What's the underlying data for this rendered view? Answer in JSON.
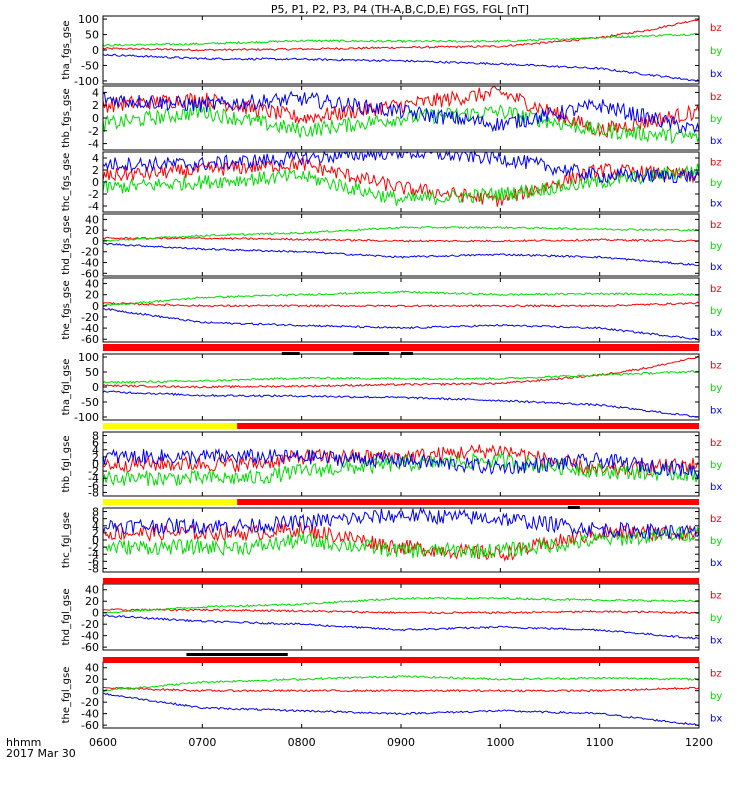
{
  "title": "P5, P1, P2, P3, P4 (TH-A,B,C,D,E) FGS, FGL [nT]",
  "footer": {
    "label_time": "hhmm",
    "label_date": "2017 Mar 30"
  },
  "colors": {
    "bx": "#0000ff",
    "by": "#00dd00",
    "bz": "#ff0000",
    "flag_red": "#ff0000",
    "flag_yellow": "#ffff00",
    "flag_black": "#000000"
  },
  "components": [
    "bz",
    "by",
    "bx"
  ],
  "chart_data": {
    "type": "line",
    "title": "P5, P1, P2, P3, P4 (TH-A,B,C,D,E) FGS, FGL [nT]",
    "x_axis": {
      "label": "hhmm",
      "start": "0600",
      "end": "1200",
      "ticks": [
        "0600",
        "0700",
        "0800",
        "0900",
        "1000",
        "1100",
        "1200"
      ],
      "date": "2017 Mar 30"
    },
    "panels": [
      {
        "ylabel": "tha_fgs_gse",
        "ylim": [
          -110,
          110
        ],
        "yticks": [
          -100,
          -50,
          0,
          50,
          100
        ],
        "series": [
          {
            "name": "bz",
            "x": [
              600,
              700,
              800,
              900,
              1000,
              1030,
              1100,
              1130,
              1200
            ],
            "y": [
              5,
              0,
              3,
              8,
              12,
              25,
              40,
              65,
              100
            ]
          },
          {
            "name": "by",
            "x": [
              600,
              700,
              800,
              900,
              1000,
              1100,
              1200
            ],
            "y": [
              15,
              20,
              30,
              28,
              28,
              40,
              52
            ]
          },
          {
            "name": "bx",
            "x": [
              600,
              700,
              800,
              900,
              1000,
              1100,
              1200
            ],
            "y": [
              -15,
              -28,
              -30,
              -35,
              -45,
              -60,
              -100
            ]
          }
        ]
      },
      {
        "ylabel": "thb_fgs_gse",
        "ylim": [
          -5,
          5
        ],
        "yticks": [
          -4,
          -2,
          0,
          2,
          4
        ],
        "series": [
          {
            "name": "bz",
            "x": [
              600,
              700,
              800,
              900,
              1000,
              1100,
              1200
            ],
            "y": [
              2,
              3,
              0,
              2,
              4,
              -2,
              1
            ]
          },
          {
            "name": "by",
            "x": [
              600,
              700,
              800,
              900,
              1000,
              1100,
              1200
            ],
            "y": [
              -1,
              1,
              -2,
              0,
              1,
              -2,
              -3
            ]
          },
          {
            "name": "bx",
            "x": [
              600,
              700,
              800,
              900,
              1000,
              1100,
              1200
            ],
            "y": [
              3,
              2,
              3,
              1,
              -1,
              2,
              -2
            ]
          }
        ]
      },
      {
        "ylabel": "thc_fgs_gse",
        "ylim": [
          -5,
          5
        ],
        "yticks": [
          -4,
          -2,
          0,
          2,
          4
        ],
        "series": [
          {
            "name": "bz",
            "x": [
              600,
              700,
              800,
              900,
              1000,
              1100,
              1200
            ],
            "y": [
              1,
              2,
              3,
              -1,
              -3,
              2,
              1
            ]
          },
          {
            "name": "by",
            "x": [
              600,
              700,
              800,
              900,
              1000,
              1100,
              1200
            ],
            "y": [
              -1,
              0,
              1,
              -3,
              -2,
              0,
              2
            ]
          },
          {
            "name": "bx",
            "x": [
              600,
              700,
              800,
              900,
              1000,
              1100,
              1200
            ],
            "y": [
              3,
              3,
              4,
              5,
              4,
              1,
              1
            ]
          }
        ]
      },
      {
        "ylabel": "thd_fgs_gse",
        "ylim": [
          -65,
          50
        ],
        "yticks": [
          -60,
          -40,
          -20,
          0,
          20,
          40
        ],
        "series": [
          {
            "name": "bz",
            "x": [
              600,
              700,
              800,
              900,
              1000,
              1100,
              1200
            ],
            "y": [
              5,
              5,
              3,
              0,
              0,
              2,
              0
            ]
          },
          {
            "name": "by",
            "x": [
              600,
              700,
              800,
              900,
              1000,
              1100,
              1200
            ],
            "y": [
              0,
              10,
              15,
              25,
              25,
              22,
              20
            ]
          },
          {
            "name": "bx",
            "x": [
              600,
              700,
              800,
              900,
              1000,
              1100,
              1200
            ],
            "y": [
              -5,
              -15,
              -20,
              -30,
              -25,
              -30,
              -45
            ]
          }
        ]
      },
      {
        "ylabel": "the_fgs_gse",
        "ylim": [
          -65,
          50
        ],
        "yticks": [
          -60,
          -40,
          -20,
          0,
          20,
          40
        ],
        "series": [
          {
            "name": "bz",
            "x": [
              600,
              700,
              800,
              900,
              1000,
              1100,
              1200
            ],
            "y": [
              5,
              0,
              0,
              0,
              0,
              0,
              5
            ]
          },
          {
            "name": "by",
            "x": [
              600,
              700,
              800,
              900,
              1000,
              1100,
              1200
            ],
            "y": [
              0,
              15,
              20,
              25,
              20,
              22,
              20
            ]
          },
          {
            "name": "bx",
            "x": [
              600,
              700,
              800,
              900,
              1000,
              1100,
              1200
            ],
            "y": [
              -5,
              -30,
              -35,
              -40,
              -35,
              -40,
              -60
            ]
          }
        ]
      },
      {
        "ylabel": "tha_fgl_gse",
        "ylim": [
          -110,
          110
        ],
        "yticks": [
          -100,
          -50,
          0,
          50,
          100
        ],
        "series": [
          {
            "name": "bz",
            "x": [
              600,
              700,
              800,
              900,
              1000,
              1030,
              1100,
              1130,
              1200
            ],
            "y": [
              5,
              0,
              3,
              8,
              12,
              25,
              40,
              65,
              100
            ]
          },
          {
            "name": "by",
            "x": [
              600,
              700,
              800,
              900,
              1000,
              1100,
              1200
            ],
            "y": [
              15,
              20,
              30,
              28,
              28,
              40,
              52
            ]
          },
          {
            "name": "bx",
            "x": [
              600,
              700,
              800,
              900,
              1000,
              1100,
              1200
            ],
            "y": [
              -15,
              -28,
              -30,
              -35,
              -45,
              -60,
              -100
            ]
          }
        ]
      },
      {
        "ylabel": "thb_fgl_gse",
        "ylim": [
          -9,
          9
        ],
        "yticks": [
          -8,
          -6,
          -4,
          -2,
          0,
          2,
          4,
          6,
          8
        ],
        "series": [
          {
            "name": "bz",
            "x": [
              600,
              730,
              800,
              900,
              1000,
              1100,
              1200
            ],
            "y": [
              0,
              0,
              2,
              2,
              4,
              -2,
              0
            ]
          },
          {
            "name": "by",
            "x": [
              600,
              730,
              800,
              900,
              1000,
              1100,
              1200
            ],
            "y": [
              -4,
              -4,
              -2,
              0,
              1,
              -2,
              -3
            ]
          },
          {
            "name": "bx",
            "x": [
              600,
              730,
              800,
              900,
              1000,
              1100,
              1200
            ],
            "y": [
              2,
              2,
              2,
              1,
              -1,
              1,
              -2
            ]
          }
        ]
      },
      {
        "ylabel": "thc_fgl_gse",
        "ylim": [
          -9,
          9
        ],
        "yticks": [
          -8,
          -6,
          -4,
          -2,
          0,
          2,
          4,
          6,
          8
        ],
        "series": [
          {
            "name": "bz",
            "x": [
              600,
              730,
              800,
              900,
              1000,
              1100,
              1200
            ],
            "y": [
              2,
              2,
              3,
              -2,
              -4,
              2,
              2
            ]
          },
          {
            "name": "by",
            "x": [
              600,
              730,
              800,
              900,
              1000,
              1100,
              1200
            ],
            "y": [
              -2,
              -2,
              0,
              -3,
              -3,
              0,
              2
            ]
          },
          {
            "name": "bx",
            "x": [
              600,
              730,
              800,
              900,
              1000,
              1100,
              1200
            ],
            "y": [
              4,
              4,
              5,
              7,
              6,
              3,
              2
            ]
          }
        ]
      },
      {
        "ylabel": "thd_fgl_gse",
        "ylim": [
          -65,
          50
        ],
        "yticks": [
          -60,
          -40,
          -20,
          0,
          20,
          40
        ],
        "series": [
          {
            "name": "bz",
            "x": [
              600,
              700,
              800,
              900,
              1000,
              1100,
              1200
            ],
            "y": [
              5,
              5,
              3,
              0,
              0,
              2,
              0
            ]
          },
          {
            "name": "by",
            "x": [
              600,
              700,
              800,
              900,
              1000,
              1100,
              1200
            ],
            "y": [
              0,
              10,
              15,
              25,
              25,
              22,
              20
            ]
          },
          {
            "name": "bx",
            "x": [
              600,
              700,
              800,
              900,
              1000,
              1100,
              1200
            ],
            "y": [
              -5,
              -15,
              -20,
              -30,
              -25,
              -30,
              -45
            ]
          }
        ]
      },
      {
        "ylabel": "the_fgl_gse",
        "ylim": [
          -65,
          50
        ],
        "yticks": [
          -60,
          -40,
          -20,
          0,
          20,
          40
        ],
        "series": [
          {
            "name": "bz",
            "x": [
              600,
              700,
              800,
              900,
              1000,
              1100,
              1200
            ],
            "y": [
              5,
              0,
              0,
              0,
              0,
              0,
              5
            ]
          },
          {
            "name": "by",
            "x": [
              600,
              700,
              800,
              900,
              1000,
              1100,
              1200
            ],
            "y": [
              0,
              15,
              20,
              25,
              20,
              22,
              20
            ]
          },
          {
            "name": "bx",
            "x": [
              600,
              700,
              800,
              900,
              1000,
              1100,
              1200
            ],
            "y": [
              -5,
              -30,
              -35,
              -40,
              -35,
              -40,
              -60
            ]
          }
        ]
      }
    ]
  }
}
